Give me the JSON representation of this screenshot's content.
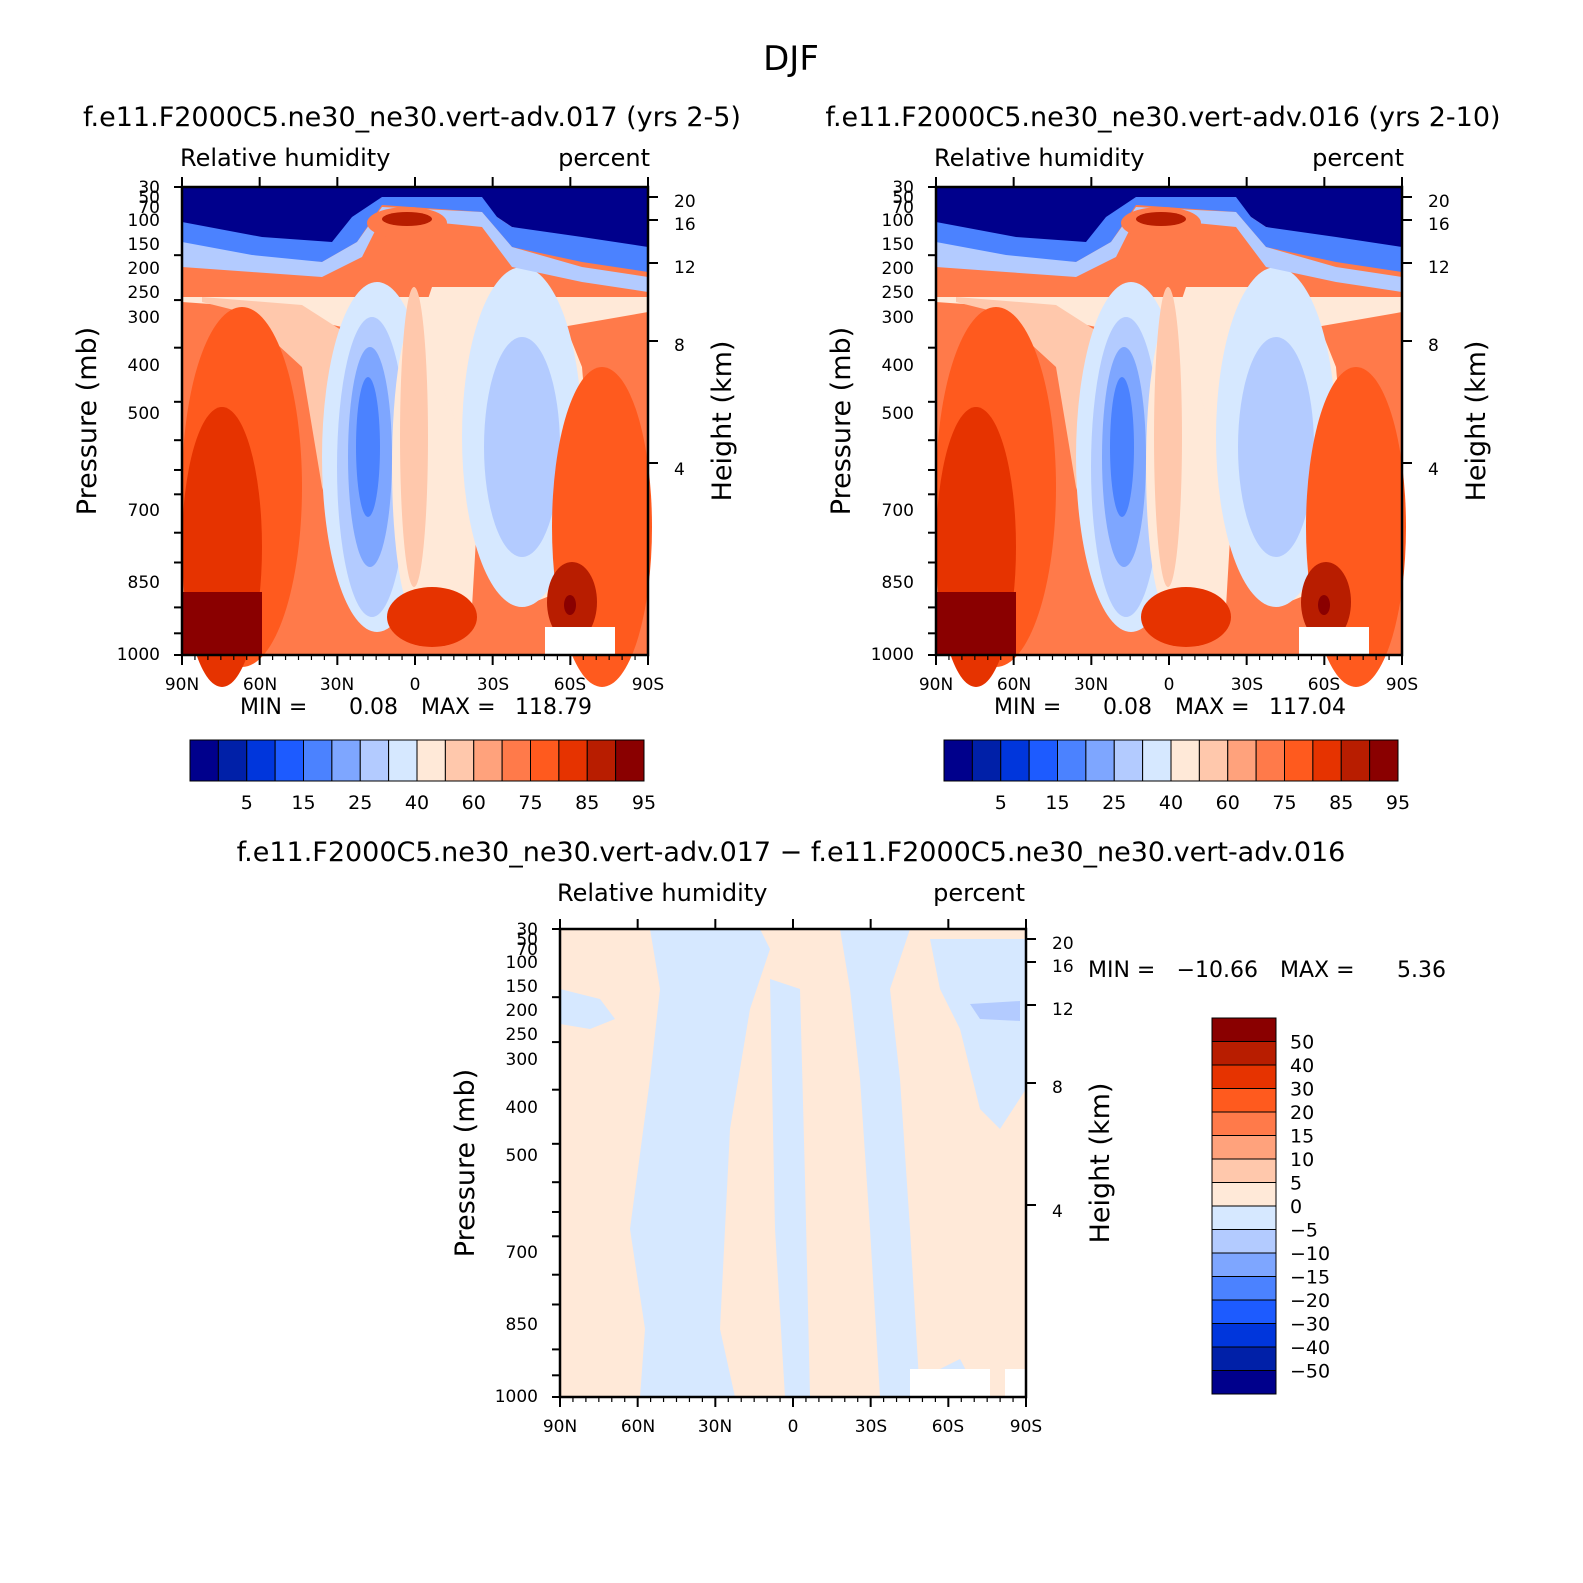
{
  "title": "DJF",
  "colors": {
    "rh_levels": [
      "#00008c",
      "#0020a8",
      "#0036dc",
      "#1d5bff",
      "#4b82ff",
      "#7ea6ff",
      "#b3cbff",
      "#d6e8ff",
      "#ffe9d8",
      "#ffc8ac",
      "#ffa27c",
      "#ff7a4a",
      "#ff5a1e",
      "#e63300",
      "#b81d00",
      "#8a0000"
    ],
    "diff_levels": [
      "#00008c",
      "#0020a8",
      "#0036dc",
      "#1d5bff",
      "#4b82ff",
      "#7ea6ff",
      "#b3cbff",
      "#d6e8ff",
      "#ffe9d8",
      "#ffc8ac",
      "#ffa27c",
      "#ff7a4a",
      "#ff5a1e",
      "#e63300",
      "#b81d00",
      "#8a0000"
    ]
  },
  "chart_data": [
    {
      "type": "heatmap",
      "title": "f.e11.F2000C5.ne30_ne30.vert-adv.017 (yrs 2-5)",
      "left_subtitle": "Relative humidity",
      "right_subtitle": "percent",
      "ylabel": "Pressure (mb)",
      "ylabel_right": "Height (km)",
      "x_ticks": [
        "90N",
        "60N",
        "30N",
        "0",
        "30S",
        "60S",
        "90S"
      ],
      "y_ticks": [
        "30",
        "50",
        "70",
        "100",
        "150",
        "200",
        "250",
        "300",
        "400",
        "500",
        "700",
        "850",
        "1000"
      ],
      "y_ticks_right": [
        "20",
        "16",
        "12",
        "8",
        "4"
      ],
      "min_label": "MIN =",
      "min_value": "0.08",
      "max_label": "MAX =",
      "max_value": "118.79",
      "colorbar_labels": [
        "5",
        "15",
        "25",
        "40",
        "60",
        "75",
        "85",
        "95"
      ]
    },
    {
      "type": "heatmap",
      "title": "f.e11.F2000C5.ne30_ne30.vert-adv.016 (yrs 2-10)",
      "left_subtitle": "Relative humidity",
      "right_subtitle": "percent",
      "ylabel": "Pressure (mb)",
      "ylabel_right": "Height (km)",
      "x_ticks": [
        "90N",
        "60N",
        "30N",
        "0",
        "30S",
        "60S",
        "90S"
      ],
      "y_ticks": [
        "30",
        "50",
        "70",
        "100",
        "150",
        "200",
        "250",
        "300",
        "400",
        "500",
        "700",
        "850",
        "1000"
      ],
      "y_ticks_right": [
        "20",
        "16",
        "12",
        "8",
        "4"
      ],
      "min_label": "MIN =",
      "min_value": "0.08",
      "max_label": "MAX =",
      "max_value": "117.04",
      "colorbar_labels": [
        "5",
        "15",
        "25",
        "40",
        "60",
        "75",
        "85",
        "95"
      ]
    },
    {
      "type": "heatmap",
      "title": "f.e11.F2000C5.ne30_ne30.vert-adv.017 − f.e11.F2000C5.ne30_ne30.vert-adv.016",
      "left_subtitle": "Relative humidity",
      "right_subtitle": "percent",
      "ylabel": "Pressure (mb)",
      "ylabel_right": "Height (km)",
      "x_ticks": [
        "90N",
        "60N",
        "30N",
        "0",
        "30S",
        "60S",
        "90S"
      ],
      "y_ticks": [
        "30",
        "50",
        "70",
        "100",
        "150",
        "200",
        "250",
        "300",
        "400",
        "500",
        "700",
        "850",
        "1000"
      ],
      "y_ticks_right": [
        "20",
        "16",
        "12",
        "8",
        "4"
      ],
      "min_label": "MIN =",
      "min_value": "−10.66",
      "max_label": "MAX =",
      "max_value": "5.36",
      "colorbar_labels": [
        "50",
        "40",
        "30",
        "20",
        "15",
        "10",
        "5",
        "0",
        "−5",
        "−10",
        "−15",
        "−20",
        "−30",
        "−40",
        "−50"
      ]
    }
  ]
}
